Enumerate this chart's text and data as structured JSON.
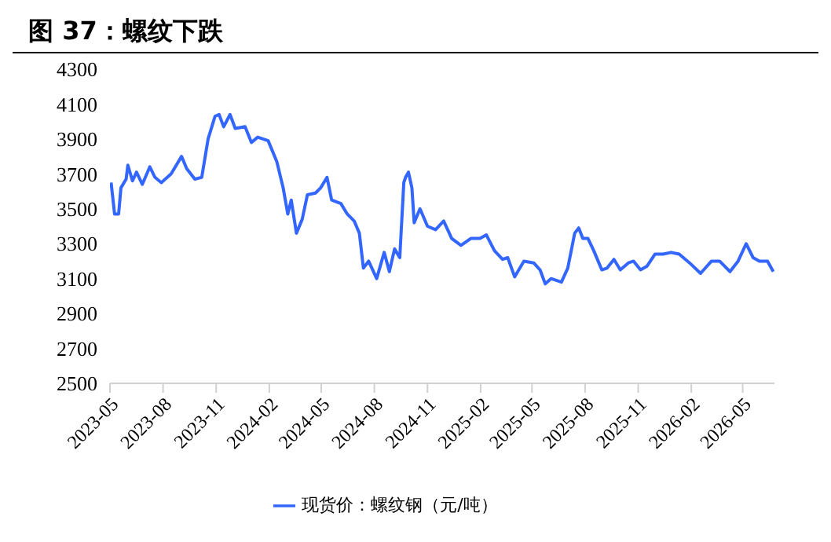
{
  "chart_data": {
    "type": "line",
    "title": "图 37：螺纹下跌",
    "x": [
      "2023-05-03",
      "2023-05-09",
      "2023-05-16",
      "2023-05-20",
      "2023-05-29",
      "2023-06-01",
      "2023-06-09",
      "2023-06-16",
      "2023-06-26",
      "2023-07-09",
      "2023-07-18",
      "2023-07-29",
      "2023-08-15",
      "2023-09-02",
      "2023-09-11",
      "2023-09-25",
      "2023-10-07",
      "2023-10-18",
      "2023-10-30",
      "2023-11-06",
      "2023-11-14",
      "2023-11-25",
      "2023-12-04",
      "2023-12-21",
      "2024-01-01",
      "2024-01-12",
      "2024-01-30",
      "2024-02-14",
      "2024-02-25",
      "2024-03-04",
      "2024-03-10",
      "2024-03-19",
      "2024-03-29",
      "2024-04-07",
      "2024-04-21",
      "2024-04-30",
      "2024-05-11",
      "2024-05-19",
      "2024-06-04",
      "2024-06-15",
      "2024-06-27",
      "2024-07-06",
      "2024-07-13",
      "2024-07-22",
      "2024-08-05",
      "2024-08-18",
      "2024-08-27",
      "2024-09-05",
      "2024-09-14",
      "2024-09-21",
      "2024-09-24",
      "2024-09-29",
      "2024-10-05",
      "2024-10-09",
      "2024-10-19",
      "2024-11-01",
      "2024-11-15",
      "2024-11-29",
      "2024-12-13",
      "2024-12-29",
      "2025-01-15",
      "2025-01-31",
      "2025-02-11",
      "2025-02-25",
      "2025-03-11",
      "2025-03-20",
      "2025-04-01",
      "2025-04-17",
      "2025-05-04",
      "2025-05-15",
      "2025-05-24",
      "2025-06-03",
      "2025-06-21",
      "2025-07-02",
      "2025-07-14",
      "2025-07-21",
      "2025-07-28",
      "2025-08-06",
      "2025-08-16",
      "2025-08-30",
      "2025-09-08",
      "2025-09-20",
      "2025-10-01",
      "2025-10-15",
      "2025-10-24",
      "2025-11-05",
      "2025-11-16",
      "2025-11-30",
      "2025-12-14",
      "2025-12-28",
      "2026-01-11",
      "2026-01-29",
      "2026-02-17",
      "2026-03-08",
      "2026-03-22",
      "2026-04-09",
      "2026-04-23",
      "2026-05-07",
      "2026-05-19",
      "2026-05-30",
      "2026-06-13",
      "2026-06-23"
    ],
    "series": [
      {
        "name": "现货价：螺纹钢（元/吨）",
        "color": "#3366ff",
        "values": [
          3650,
          3470,
          3470,
          3620,
          3670,
          3750,
          3660,
          3710,
          3640,
          3740,
          3680,
          3650,
          3700,
          3800,
          3730,
          3670,
          3680,
          3900,
          4030,
          4040,
          3970,
          4040,
          3960,
          3970,
          3880,
          3910,
          3890,
          3770,
          3620,
          3470,
          3550,
          3360,
          3440,
          3580,
          3590,
          3620,
          3680,
          3550,
          3530,
          3470,
          3430,
          3360,
          3160,
          3200,
          3100,
          3250,
          3140,
          3270,
          3220,
          3650,
          3680,
          3710,
          3620,
          3420,
          3500,
          3400,
          3380,
          3430,
          3330,
          3290,
          3330,
          3330,
          3350,
          3260,
          3210,
          3220,
          3110,
          3200,
          3190,
          3150,
          3070,
          3100,
          3080,
          3160,
          3360,
          3390,
          3330,
          3330,
          3260,
          3150,
          3160,
          3210,
          3150,
          3190,
          3200,
          3150,
          3170,
          3240,
          3240,
          3250,
          3240,
          3190,
          3130,
          3200,
          3200,
          3140,
          3200,
          3300,
          3220,
          3200,
          3200,
          3140
        ]
      }
    ],
    "xlim": [
      "2023-05-01",
      "2026-06-25"
    ],
    "xticks": [
      "2023-05",
      "2023-08",
      "2023-11",
      "2024-02",
      "2024-05",
      "2024-08",
      "2024-11",
      "2025-02",
      "2025-05",
      "2025-08",
      "2025-11",
      "2026-02",
      "2026-05"
    ],
    "ylim": [
      2500,
      4300
    ],
    "yticks": [
      2500,
      2700,
      2900,
      3100,
      3300,
      3500,
      3700,
      3900,
      4100,
      4300
    ],
    "grid": false,
    "legend": "bottom",
    "marker": "none",
    "line_style": "solid"
  }
}
